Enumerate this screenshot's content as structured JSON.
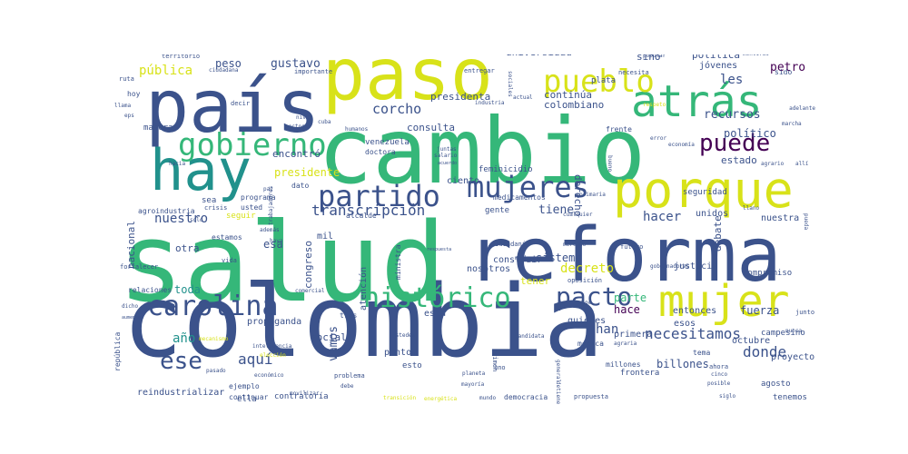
{
  "wordcloud": {
    "colors": {
      "purple": "#440154",
      "indigo": "#3b528b",
      "blue": "#31688e",
      "teal": "#21918c",
      "green": "#35b779",
      "lime": "#90d743",
      "yellow": "#d8e219"
    },
    "words": [
      {
        "text": "colombia",
        "weight": 1.0,
        "color": "#3b528b"
      },
      {
        "text": "salud",
        "weight": 0.98,
        "color": "#35b779"
      },
      {
        "text": "cambio",
        "weight": 0.9,
        "color": "#35b779"
      },
      {
        "text": "país",
        "weight": 0.7,
        "color": "#3b528b"
      },
      {
        "text": "paso",
        "weight": 0.68,
        "color": "#d8e219"
      },
      {
        "text": "reforma",
        "weight": 0.82,
        "color": "#3b528b"
      },
      {
        "text": "hay",
        "weight": 0.55,
        "color": "#21918c"
      },
      {
        "text": "atrás",
        "weight": 0.5,
        "color": "#35b779"
      },
      {
        "text": "porque",
        "weight": 0.55,
        "color": "#d8e219"
      },
      {
        "text": "mujer",
        "weight": 0.45,
        "color": "#d8e219"
      },
      {
        "text": "pueblo",
        "weight": 0.38,
        "color": "#d8e219"
      },
      {
        "text": "gobierno",
        "weight": 0.38,
        "color": "#35b779"
      },
      {
        "text": "partido",
        "weight": 0.32,
        "color": "#3b528b"
      },
      {
        "text": "mujeres",
        "weight": 0.32,
        "color": "#3b528b"
      },
      {
        "text": "carolina",
        "weight": 0.32,
        "color": "#3b528b"
      },
      {
        "text": "histórico",
        "weight": 0.32,
        "color": "#35b779"
      },
      {
        "text": "pacto",
        "weight": 0.3,
        "color": "#3b528b"
      },
      {
        "text": "puede",
        "weight": 0.26,
        "color": "#440154"
      },
      {
        "text": "ese",
        "weight": 0.24,
        "color": "#3b528b"
      },
      {
        "text": "aquí",
        "weight": 0.18,
        "color": "#3b528b"
      },
      {
        "text": "corcho",
        "weight": 0.15,
        "color": "#3b528b"
      },
      {
        "text": "transcripción",
        "weight": 0.15,
        "color": "#3b528b"
      },
      {
        "text": "donde",
        "weight": 0.15,
        "color": "#3b528b"
      },
      {
        "text": "nuestro",
        "weight": 0.14,
        "color": "#3b528b"
      },
      {
        "text": "año",
        "weight": 0.14,
        "color": "#21918c"
      },
      {
        "text": "pública",
        "weight": 0.12,
        "color": "#d8e219"
      },
      {
        "text": "peso",
        "weight": 0.11,
        "color": "#3b528b"
      },
      {
        "text": "gustavo",
        "weight": 0.11,
        "color": "#3b528b"
      },
      {
        "text": "petro",
        "weight": 0.11,
        "color": "#440154"
      },
      {
        "text": "recursos",
        "weight": 0.11,
        "color": "#3b528b"
      },
      {
        "text": "presidente",
        "weight": 0.1,
        "color": "#d8e219"
      },
      {
        "text": "toda",
        "weight": 0.1,
        "color": "#21918c"
      },
      {
        "text": "tiene",
        "weight": 0.1,
        "color": "#3b528b"
      },
      {
        "text": "decreto",
        "weight": 0.12,
        "color": "#d8e219"
      },
      {
        "text": "hacer",
        "weight": 0.12,
        "color": "#3b528b"
      },
      {
        "text": "han",
        "weight": 0.12,
        "color": "#3b528b"
      },
      {
        "text": "hace",
        "weight": 0.1,
        "color": "#440154"
      },
      {
        "text": "necesitamos",
        "weight": 0.12,
        "color": "#3b528b"
      },
      {
        "text": "parte",
        "weight": 0.1,
        "color": "#35b779"
      },
      {
        "text": "fuerza",
        "weight": 0.09,
        "color": "#3b528b"
      },
      {
        "text": "billones",
        "weight": 0.09,
        "color": "#3b528b"
      },
      {
        "text": "universidad",
        "weight": 0.08,
        "color": "#3b528b"
      },
      {
        "text": "presidenta",
        "weight": 0.09,
        "color": "#3b528b"
      },
      {
        "text": "continúa",
        "weight": 0.08,
        "color": "#3b528b"
      },
      {
        "text": "colombiano",
        "weight": 0.08,
        "color": "#3b528b"
      },
      {
        "text": "encontró",
        "weight": 0.09,
        "color": "#3b528b"
      },
      {
        "text": "consulta",
        "weight": 0.08,
        "color": "#3b528b"
      },
      {
        "text": "político",
        "weight": 0.09,
        "color": "#3b528b"
      },
      {
        "text": "estado",
        "weight": 0.08,
        "color": "#3b528b"
      },
      {
        "text": "les",
        "weight": 0.1,
        "color": "#3b528b"
      },
      {
        "text": "sino",
        "weight": 0.08,
        "color": "#3b528b"
      },
      {
        "text": "política",
        "weight": 0.08,
        "color": "#3b528b"
      },
      {
        "text": "jóvenes",
        "weight": 0.07,
        "color": "#3b528b"
      },
      {
        "text": "derecho",
        "weight": 0.07,
        "color": "#3b528b"
      },
      {
        "text": "ciento",
        "weight": 0.08,
        "color": "#3b528b"
      },
      {
        "text": "congreso",
        "weight": 0.08,
        "color": "#3b528b"
      },
      {
        "text": "vamos",
        "weight": 0.1,
        "color": "#3b528b"
      },
      {
        "text": "sistema",
        "weight": 0.08,
        "color": "#3b528b"
      },
      {
        "text": "social",
        "weight": 0.07,
        "color": "#3b528b"
      },
      {
        "text": "esa",
        "weight": 0.08,
        "color": "#3b528b"
      },
      {
        "text": "otra",
        "weight": 0.07,
        "color": "#3b528b"
      },
      {
        "text": "nacional",
        "weight": 0.08,
        "color": "#3b528b"
      },
      {
        "text": "unidos",
        "weight": 0.07,
        "color": "#3b528b"
      },
      {
        "text": "nuestra",
        "weight": 0.07,
        "color": "#3b528b"
      },
      {
        "text": "debate",
        "weight": 0.07,
        "color": "#3b528b"
      },
      {
        "text": "justicia",
        "weight": 0.07,
        "color": "#3b528b"
      },
      {
        "text": "entonces",
        "weight": 0.07,
        "color": "#3b528b"
      },
      {
        "text": "quienes",
        "weight": 0.07,
        "color": "#3b528b"
      },
      {
        "text": "esos",
        "weight": 0.07,
        "color": "#3b528b"
      },
      {
        "text": "primera",
        "weight": 0.07,
        "color": "#3b528b"
      },
      {
        "text": "octubre",
        "weight": 0.07,
        "color": "#3b528b"
      },
      {
        "text": "proyecto",
        "weight": 0.07,
        "color": "#3b528b"
      },
      {
        "text": "tenemos",
        "weight": 0.06,
        "color": "#3b528b"
      },
      {
        "text": "agosto",
        "weight": 0.06,
        "color": "#3b528b"
      },
      {
        "text": "compromiso",
        "weight": 0.06,
        "color": "#3b528b"
      },
      {
        "text": "campesino",
        "weight": 0.06,
        "color": "#3b528b"
      },
      {
        "text": "seguridad",
        "weight": 0.06,
        "color": "#3b528b"
      },
      {
        "text": "frontera",
        "weight": 0.06,
        "color": "#3b528b"
      },
      {
        "text": "contraloría",
        "weight": 0.06,
        "color": "#3b528b"
      },
      {
        "text": "reindustrializar",
        "weight": 0.07,
        "color": "#3b528b"
      },
      {
        "text": "democracia",
        "weight": 0.06,
        "color": "#3b528b"
      },
      {
        "text": "propuesta",
        "weight": 0.05,
        "color": "#3b528b"
      },
      {
        "text": "continuar",
        "weight": 0.05,
        "color": "#3b528b"
      },
      {
        "text": "punto",
        "weight": 0.06,
        "color": "#3b528b"
      },
      {
        "text": "esto",
        "weight": 0.05,
        "color": "#3b528b"
      },
      {
        "text": "ella",
        "weight": 0.06,
        "color": "#3b528b"
      },
      {
        "text": "ejemplo",
        "weight": 0.05,
        "color": "#3b528b"
      },
      {
        "text": "mil",
        "weight": 0.06,
        "color": "#3b528b"
      },
      {
        "text": "esta",
        "weight": 0.06,
        "color": "#3b528b"
      },
      {
        "text": "tres",
        "weight": 0.05,
        "color": "#3b528b"
      },
      {
        "text": "nosotros",
        "weight": 0.06,
        "color": "#3b528b"
      },
      {
        "text": "construir",
        "weight": 0.06,
        "color": "#3b528b"
      },
      {
        "text": "gente",
        "weight": 0.05,
        "color": "#3b528b"
      },
      {
        "text": "atención",
        "weight": 0.05,
        "color": "#3b528b"
      },
      {
        "text": "alcalde",
        "weight": 0.04,
        "color": "#3b528b"
      },
      {
        "text": "usted",
        "weight": 0.04,
        "color": "#3b528b"
      },
      {
        "text": "estamos",
        "weight": 0.05,
        "color": "#3b528b"
      },
      {
        "text": "sea",
        "weight": 0.05,
        "color": "#3b528b"
      },
      {
        "text": "crisis",
        "weight": 0.04,
        "color": "#3b528b"
      },
      {
        "text": "programa",
        "weight": 0.05,
        "color": "#3b528b"
      },
      {
        "text": "agroindustria",
        "weight": 0.04,
        "color": "#3b528b"
      },
      {
        "text": "manera",
        "weight": 0.05,
        "color": "#3b528b"
      },
      {
        "text": "feminicidio",
        "weight": 0.04,
        "color": "#3b528b"
      },
      {
        "text": "medicamentos",
        "weight": 0.04,
        "color": "#3b528b"
      },
      {
        "text": "dato",
        "weight": 0.04,
        "color": "#3b528b"
      },
      {
        "text": "venezuela",
        "weight": 0.04,
        "color": "#3b528b"
      },
      {
        "text": "doctora",
        "weight": 0.04,
        "color": "#3b528b"
      },
      {
        "text": "ciudadanía",
        "weight": 0.04,
        "color": "#3b528b"
      },
      {
        "text": "ministra",
        "weight": 0.04,
        "color": "#3b528b"
      },
      {
        "text": "tener",
        "weight": 0.06,
        "color": "#d8e219"
      },
      {
        "text": "seguir",
        "weight": 0.05,
        "color": "#d8e219"
      },
      {
        "text": "fortalecer",
        "weight": 0.04,
        "color": "#3b528b"
      },
      {
        "text": "relaciones",
        "weight": 0.04,
        "color": "#3b528b"
      },
      {
        "text": "república",
        "weight": 0.04,
        "color": "#3b528b"
      },
      {
        "text": "propaganda",
        "weight": 0.05,
        "color": "#3b528b"
      },
      {
        "text": "territorio",
        "weight": 0.04,
        "color": "#3b528b"
      },
      {
        "text": "ruta",
        "weight": 0.04,
        "color": "#3b528b"
      },
      {
        "text": "hoy",
        "weight": 0.04,
        "color": "#3b528b"
      },
      {
        "text": "importante",
        "weight": 0.04,
        "color": "#3b528b"
      },
      {
        "text": "entregar",
        "weight": 0.04,
        "color": "#3b528b"
      },
      {
        "text": "plata",
        "weight": 0.05,
        "color": "#3b528b"
      },
      {
        "text": "necesita",
        "weight": 0.04,
        "color": "#3b528b"
      },
      {
        "text": "frente",
        "weight": 0.04,
        "color": "#3b528b"
      },
      {
        "text": "médica",
        "weight": 0.04,
        "color": "#3b528b"
      },
      {
        "text": "millones",
        "weight": 0.04,
        "color": "#3b528b"
      },
      {
        "text": "tema",
        "weight": 0.04,
        "color": "#3b528b"
      },
      {
        "text": "ahora",
        "weight": 0.04,
        "color": "#3b528b"
      },
      {
        "text": "cinco",
        "weight": 0.03,
        "color": "#3b528b"
      },
      {
        "text": "posible",
        "weight": 0.03,
        "color": "#3b528b"
      },
      {
        "text": "mundo",
        "weight": 0.03,
        "color": "#3b528b"
      },
      {
        "text": "uno",
        "weight": 0.04,
        "color": "#3b528b"
      },
      {
        "text": "problema",
        "weight": 0.03,
        "color": "#3b528b"
      },
      {
        "text": "futuro",
        "weight": 0.04,
        "color": "#3b528b"
      },
      {
        "text": "gobernadores",
        "weight": 0.03,
        "color": "#3b528b"
      },
      {
        "text": "oposición",
        "weight": 0.03,
        "color": "#3b528b"
      },
      {
        "text": "mentiras",
        "weight": 0.03,
        "color": "#3b528b"
      },
      {
        "text": "sido",
        "weight": 0.03,
        "color": "#3b528b"
      },
      {
        "text": "marcha",
        "weight": 0.03,
        "color": "#3b528b"
      },
      {
        "text": "agrario",
        "weight": 0.03,
        "color": "#3b528b"
      },
      {
        "text": "industria",
        "weight": 0.03,
        "color": "#3b528b"
      },
      {
        "text": "sociales",
        "weight": 0.03,
        "color": "#3b528b"
      },
      {
        "text": "decir",
        "weight": 0.03,
        "color": "#3b528b"
      },
      {
        "text": "llama",
        "weight": 0.03,
        "color": "#3b528b"
      },
      {
        "text": "eps",
        "weight": 0.03,
        "color": "#3b528b"
      },
      {
        "text": "ciudadana",
        "weight": 0.03,
        "color": "#3b528b"
      },
      {
        "text": "además",
        "weight": 0.03,
        "color": "#3b528b"
      },
      {
        "text": "vida",
        "weight": 0.03,
        "color": "#3b528b"
      },
      {
        "text": "comercial",
        "weight": 0.03,
        "color": "#3b528b"
      },
      {
        "text": "popular",
        "weight": 0.03,
        "color": "#3b528b"
      },
      {
        "text": "dicho",
        "weight": 0.03,
        "color": "#3b528b"
      },
      {
        "text": "aumento",
        "weight": 0.03,
        "color": "#3b528b"
      },
      {
        "text": "pasado",
        "weight": 0.03,
        "color": "#3b528b"
      },
      {
        "text": "inteligencia",
        "weight": 0.03,
        "color": "#3b528b"
      },
      {
        "text": "económico",
        "weight": 0.03,
        "color": "#3b528b"
      },
      {
        "text": "debe",
        "weight": 0.03,
        "color": "#3b528b"
      },
      {
        "text": "crimen",
        "weight": 0.03,
        "color": "#3b528b"
      },
      {
        "text": "general",
        "weight": 0.03,
        "color": "#3b528b"
      },
      {
        "text": "junto",
        "weight": 0.03,
        "color": "#3b528b"
      },
      {
        "text": "nunca",
        "weight": 0.03,
        "color": "#3b528b"
      },
      {
        "text": "adelante",
        "weight": 0.03,
        "color": "#3b528b"
      },
      {
        "text": "respeto",
        "weight": 0.03,
        "color": "#d8e219"
      },
      {
        "text": "economía",
        "weight": 0.03,
        "color": "#3b528b"
      },
      {
        "text": "error",
        "weight": 0.03,
        "color": "#3b528b"
      },
      {
        "text": "bueno",
        "weight": 0.03,
        "color": "#3b528b"
      },
      {
        "text": "primaria",
        "weight": 0.03,
        "color": "#3b528b"
      },
      {
        "text": "cualquier",
        "weight": 0.03,
        "color": "#3b528b"
      },
      {
        "text": "juntas",
        "weight": 0.03,
        "color": "#3b528b"
      },
      {
        "text": "salario",
        "weight": 0.03,
        "color": "#3b528b"
      },
      {
        "text": "acuerdo",
        "weight": 0.03,
        "color": "#3b528b"
      },
      {
        "text": "detiene",
        "weight": 0.03,
        "color": "#3b528b"
      },
      {
        "text": "cuba",
        "weight": 0.03,
        "color": "#3b528b"
      },
      {
        "text": "hacia",
        "weight": 0.03,
        "color": "#3b528b"
      },
      {
        "text": "paz",
        "weight": 0.03,
        "color": "#3b528b"
      },
      {
        "text": "solo",
        "weight": 0.03,
        "color": "#3b528b"
      },
      {
        "text": "mucho",
        "weight": 0.03,
        "color": "#3b528b"
      },
      {
        "text": "trabajadores",
        "weight": 0.03,
        "color": "#3b528b"
      },
      {
        "text": "ustedes",
        "weight": 0.03,
        "color": "#3b528b"
      },
      {
        "text": "candidata",
        "weight": 0.03,
        "color": "#3b528b"
      },
      {
        "text": "exige",
        "weight": 0.03,
        "color": "#3b528b"
      },
      {
        "text": "humanos",
        "weight": 0.03,
        "color": "#3b528b"
      },
      {
        "text": "sector",
        "weight": 0.03,
        "color": "#3b528b"
      },
      {
        "text": "nivel",
        "weight": 0.03,
        "color": "#3b528b"
      },
      {
        "text": "actual",
        "weight": 0.03,
        "color": "#3b528b"
      },
      {
        "text": "respuesta",
        "weight": 0.03,
        "color": "#3b528b"
      },
      {
        "text": "haya",
        "weight": 0.03,
        "color": "#3b528b"
      },
      {
        "text": "llano",
        "weight": 0.03,
        "color": "#3b528b"
      },
      {
        "text": "pueda",
        "weight": 0.03,
        "color": "#3b528b"
      },
      {
        "text": "allí",
        "weight": 0.03,
        "color": "#3b528b"
      },
      {
        "text": "agraria",
        "weight": 0.03,
        "color": "#3b528b"
      },
      {
        "text": "siglo",
        "weight": 0.03,
        "color": "#3b528b"
      },
      {
        "text": "movilizar",
        "weight": 0.03,
        "color": "#3b528b"
      },
      {
        "text": "transición",
        "weight": 0.03,
        "color": "#d8e219"
      },
      {
        "text": "energética",
        "weight": 0.03,
        "color": "#d8e219"
      },
      {
        "text": "mayoría",
        "weight": 0.03,
        "color": "#3b528b"
      },
      {
        "text": "planeta",
        "weight": 0.03,
        "color": "#3b528b"
      },
      {
        "text": "mercado",
        "weight": 0.03,
        "color": "#3b528b"
      },
      {
        "text": "mecanismo",
        "weight": 0.03,
        "color": "#d8e219"
      },
      {
        "text": "elección",
        "weight": 0.03,
        "color": "#d8e219"
      }
    ]
  }
}
